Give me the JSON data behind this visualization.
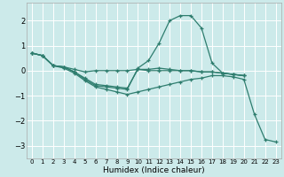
{
  "bg_color": "#cceaea",
  "grid_color": "#ffffff",
  "line_color": "#2e7d6e",
  "xlabel": "Humidex (Indice chaleur)",
  "xlim": [
    -0.5,
    23.5
  ],
  "ylim": [
    -3.5,
    2.7
  ],
  "yticks": [
    -3,
    -2,
    -1,
    0,
    1,
    2
  ],
  "xtick_labels": [
    "0",
    "1",
    "2",
    "3",
    "4",
    "5",
    "6",
    "7",
    "8",
    "9",
    "10",
    "11",
    "12",
    "13",
    "14",
    "15",
    "16",
    "17",
    "18",
    "19",
    "20",
    "21",
    "22",
    "23"
  ],
  "series": [
    {
      "x": [
        0,
        1,
        2,
        3,
        4,
        5,
        6,
        7,
        8,
        9,
        10,
        11,
        12,
        13,
        14,
        15,
        16,
        17,
        18,
        19,
        20
      ],
      "y": [
        0.7,
        0.6,
        0.2,
        0.15,
        0.05,
        -0.05,
        0.0,
        0.0,
        0.0,
        0.0,
        0.05,
        0.0,
        0.0,
        0.0,
        0.0,
        0.0,
        -0.05,
        -0.05,
        -0.1,
        -0.15,
        -0.2
      ]
    },
    {
      "x": [
        0,
        1,
        2,
        3,
        4,
        5,
        6,
        7,
        8,
        9,
        10,
        11,
        12,
        13,
        14,
        15,
        16,
        17,
        18,
        19,
        20
      ],
      "y": [
        0.7,
        0.6,
        0.2,
        0.15,
        -0.05,
        -0.3,
        -0.55,
        -0.6,
        -0.65,
        -0.7,
        0.05,
        0.05,
        0.1,
        0.05,
        0.0,
        0.0,
        -0.05,
        -0.05,
        -0.1,
        -0.15,
        -0.2
      ]
    },
    {
      "x": [
        0,
        1,
        2,
        3,
        4,
        5,
        6,
        7,
        8,
        9,
        10,
        11,
        12,
        13,
        14,
        15,
        16,
        17,
        18,
        19,
        20
      ],
      "y": [
        0.7,
        0.6,
        0.2,
        0.15,
        -0.05,
        -0.35,
        -0.6,
        -0.65,
        -0.7,
        -0.75,
        0.1,
        0.4,
        1.1,
        2.0,
        2.2,
        2.2,
        1.7,
        0.3,
        -0.1,
        -0.15,
        -0.2
      ]
    },
    {
      "x": [
        0,
        1,
        2,
        3,
        4,
        5,
        6,
        7,
        8,
        9,
        10,
        11,
        12,
        13,
        14,
        15,
        16,
        17,
        18,
        19,
        20,
        21,
        22,
        23
      ],
      "y": [
        0.7,
        0.6,
        0.2,
        0.1,
        -0.1,
        -0.4,
        -0.65,
        -0.75,
        -0.85,
        -0.95,
        -0.85,
        -0.75,
        -0.65,
        -0.55,
        -0.45,
        -0.35,
        -0.3,
        -0.2,
        -0.2,
        -0.25,
        -0.35,
        -1.75,
        -2.75,
        -2.85
      ]
    }
  ]
}
